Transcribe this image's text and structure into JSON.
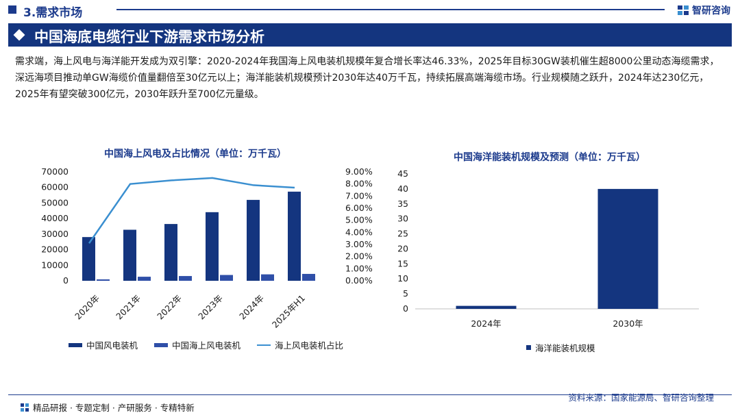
{
  "header": {
    "section": "3.需求市场",
    "logo_text": "智研咨询"
  },
  "banner": {
    "title": "中国海底电缆行业下游需求市场分析"
  },
  "description": "需求端，海上风电与海洋能开发成为双引擎：2020-2024年我国海上风电装机规模年复合增长率达46.33%，2025年目标30GW装机催生超8000公里动态海缆需求，深远海项目推动单GW海缆价值量翻倍至30亿元以上；海洋能装机规模预计2030年达40万千瓦，持续拓展高端海缆市场。行业规模随之跃升，2024年达230亿元，2025年有望突破300亿元，2030年跃升至700亿元量级。",
  "chart_data": [
    {
      "type": "bar+line",
      "title": "中国海上风电及占比情况（单位：万千瓦）",
      "categories": [
        "2020年",
        "2021年",
        "2022年",
        "2023年",
        "2024年",
        "2025年H1"
      ],
      "series": [
        {
          "name": "中国风电装机",
          "type": "bar",
          "axis": "left",
          "color": "#14357f",
          "values": [
            28100,
            32800,
            36500,
            44100,
            52000,
            57300
          ]
        },
        {
          "name": "中国海上风电装机",
          "type": "bar",
          "axis": "left",
          "color": "#2f4fa8",
          "values": [
            900,
            2600,
            3050,
            3730,
            4130,
            4420
          ]
        },
        {
          "name": "海上风电装机占比",
          "type": "line",
          "axis": "right",
          "color": "#3a8fd0",
          "values": [
            3.1,
            8.0,
            8.3,
            8.5,
            7.9,
            7.7
          ]
        }
      ],
      "left_axis": {
        "ticks": [
          "70000",
          "60000",
          "50000",
          "40000",
          "30000",
          "20000",
          "10000",
          "0"
        ],
        "ylim": [
          0,
          70000
        ]
      },
      "right_axis": {
        "ticks": [
          "9.00%",
          "8.00%",
          "7.00%",
          "6.00%",
          "5.00%",
          "4.00%",
          "3.00%",
          "2.00%",
          "1.00%",
          "0.00%"
        ],
        "ylim": [
          0,
          9
        ]
      },
      "legend": "bottom"
    },
    {
      "type": "bar",
      "title": "中国海洋能装机规模及预测（单位：万千瓦）",
      "categories": [
        "2024年",
        "2030年"
      ],
      "series": [
        {
          "name": "海洋能装机规模",
          "color": "#14357f",
          "values": [
            1,
            40
          ]
        }
      ],
      "y_axis": {
        "ticks": [
          "45",
          "40",
          "35",
          "30",
          "25",
          "20",
          "15",
          "10",
          "5",
          "0"
        ],
        "ylim": [
          0,
          45
        ]
      },
      "legend": "bottom"
    }
  ],
  "footer": {
    "left": "精品研报 · 专题定制 · 产研服务 · 专精特新",
    "right": "资料来源：国家能源局、智研咨询整理"
  }
}
